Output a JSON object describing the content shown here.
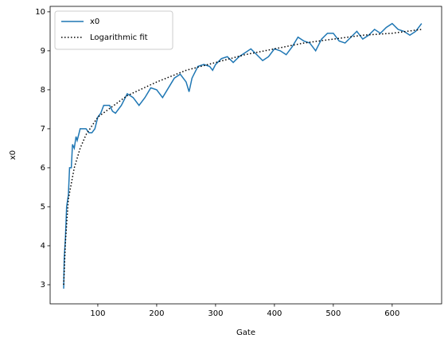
{
  "chart_data": {
    "type": "line",
    "xlabel": "Gate",
    "ylabel": "x0",
    "xlim": [
      19,
      684
    ],
    "ylim": [
      2.51,
      10.14
    ],
    "xticks": [
      100,
      200,
      300,
      400,
      500,
      600
    ],
    "yticks": [
      3,
      4,
      5,
      6,
      7,
      8,
      9,
      10
    ],
    "legend": "upper left",
    "series": [
      {
        "name": "x0",
        "color": "#1f77b4",
        "style": "solid",
        "x": [
          42,
          43,
          45,
          47,
          50,
          52,
          55,
          57,
          60,
          63,
          65,
          70,
          80,
          85,
          90,
          95,
          100,
          105,
          110,
          120,
          125,
          130,
          140,
          150,
          160,
          170,
          180,
          190,
          200,
          210,
          220,
          230,
          240,
          250,
          255,
          260,
          270,
          280,
          290,
          295,
          300,
          310,
          320,
          330,
          340,
          350,
          360,
          370,
          380,
          390,
          400,
          410,
          420,
          430,
          440,
          450,
          460,
          470,
          480,
          490,
          500,
          510,
          520,
          530,
          540,
          550,
          560,
          570,
          580,
          590,
          600,
          610,
          620,
          630,
          640,
          650
        ],
        "values": [
          2.9,
          3.7,
          4.2,
          5.0,
          5.3,
          6.0,
          6.0,
          6.6,
          6.5,
          6.8,
          6.7,
          7.0,
          7.0,
          6.9,
          6.9,
          7.0,
          7.3,
          7.4,
          7.6,
          7.6,
          7.45,
          7.4,
          7.6,
          7.9,
          7.8,
          7.6,
          7.8,
          8.05,
          8.0,
          7.8,
          8.05,
          8.3,
          8.4,
          8.2,
          7.95,
          8.3,
          8.6,
          8.65,
          8.6,
          8.5,
          8.65,
          8.8,
          8.85,
          8.7,
          8.85,
          8.95,
          9.05,
          8.9,
          8.75,
          8.85,
          9.05,
          9.0,
          8.9,
          9.1,
          9.35,
          9.25,
          9.2,
          9.0,
          9.3,
          9.45,
          9.45,
          9.25,
          9.2,
          9.35,
          9.5,
          9.3,
          9.4,
          9.55,
          9.45,
          9.6,
          9.7,
          9.55,
          9.5,
          9.4,
          9.5,
          9.7
        ]
      },
      {
        "name": "Logarithmic fit",
        "color": "#000000",
        "style": "dotted",
        "x": [
          42,
          45,
          50,
          60,
          70,
          80,
          100,
          150,
          200,
          250,
          300,
          350,
          400,
          450,
          500,
          550,
          600,
          650
        ],
        "values": [
          3.0,
          4.1,
          5.2,
          6.0,
          6.5,
          6.85,
          7.3,
          7.85,
          8.2,
          8.5,
          8.7,
          8.9,
          9.05,
          9.2,
          9.3,
          9.4,
          9.45,
          9.55
        ]
      }
    ]
  }
}
